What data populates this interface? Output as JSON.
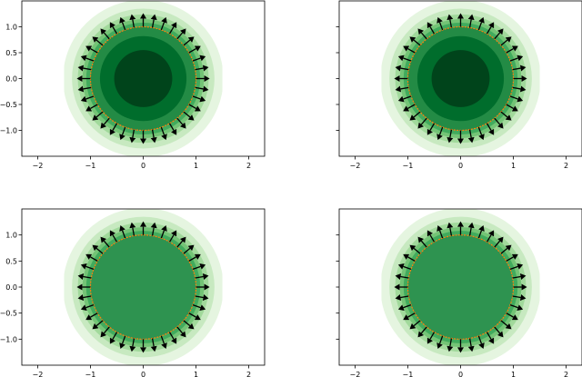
{
  "chart_data": [
    {
      "type": "contour-quiver",
      "xticks": [
        "−2",
        "−1",
        "0",
        "1",
        "2"
      ],
      "yticks": [
        "1.0",
        "0.5",
        "0.0",
        "−0.5",
        "−1.0"
      ],
      "xtick_values": [
        -2,
        -1,
        0,
        1,
        2
      ],
      "ytick_values": [
        1.0,
        0.5,
        0.0,
        -0.5,
        -1.0
      ],
      "xlim": [
        -2.3,
        2.3
      ],
      "ylim": [
        -1.5,
        1.5
      ],
      "grid": false,
      "boundary_circle_radius": 1.0,
      "arrow_count": 36,
      "inner_levels": [
        {
          "r": 0.55,
          "color": "#00441b"
        },
        {
          "r": 0.82,
          "color": "#006d2c"
        },
        {
          "r": 1.0,
          "color": "#238b45"
        }
      ],
      "outer_levels": [
        {
          "r": 1.08,
          "color": "#41ab5d"
        },
        {
          "r": 1.15,
          "color": "#74c476"
        },
        {
          "r": 1.24,
          "color": "#a1d99b"
        },
        {
          "r": 1.35,
          "color": "#c7e9c0"
        },
        {
          "r": 1.52,
          "color": "#e5f5e0"
        }
      ]
    },
    {
      "type": "contour-quiver",
      "xticks": [
        "−2",
        "−1",
        "0",
        "1",
        "2"
      ],
      "yticks": [
        "",
        "",
        "",
        "",
        ""
      ],
      "xtick_values": [
        -2,
        -1,
        0,
        1,
        2
      ],
      "ytick_values": [
        1.0,
        0.5,
        0.0,
        -0.5,
        -1.0
      ],
      "xlim": [
        -2.3,
        2.3
      ],
      "ylim": [
        -1.5,
        1.5
      ],
      "grid": false,
      "boundary_circle_radius": 1.0,
      "arrow_count": 36,
      "inner_levels": [
        {
          "r": 0.55,
          "color": "#00441b"
        },
        {
          "r": 0.82,
          "color": "#006d2c"
        },
        {
          "r": 1.0,
          "color": "#238b45"
        }
      ],
      "outer_levels": [
        {
          "r": 1.08,
          "color": "#41ab5d"
        },
        {
          "r": 1.15,
          "color": "#74c476"
        },
        {
          "r": 1.24,
          "color": "#a1d99b"
        },
        {
          "r": 1.35,
          "color": "#c7e9c0"
        },
        {
          "r": 1.52,
          "color": "#e5f5e0"
        }
      ]
    },
    {
      "type": "contour-quiver",
      "xticks": [
        "−2",
        "−1",
        "0",
        "1",
        "2"
      ],
      "yticks": [
        "1.0",
        "0.5",
        "0.0",
        "−0.5",
        "−1.0"
      ],
      "xtick_values": [
        -2,
        -1,
        0,
        1,
        2
      ],
      "ytick_values": [
        1.0,
        0.5,
        0.0,
        -0.5,
        -1.0
      ],
      "xlim": [
        -2.3,
        2.3
      ],
      "ylim": [
        -1.5,
        1.5
      ],
      "grid": false,
      "boundary_circle_radius": 1.0,
      "arrow_count": 36,
      "inner_levels": [
        {
          "r": 1.0,
          "color": "#2e9350"
        }
      ],
      "outer_levels": [
        {
          "r": 1.08,
          "color": "#41ab5d"
        },
        {
          "r": 1.15,
          "color": "#74c476"
        },
        {
          "r": 1.24,
          "color": "#a1d99b"
        },
        {
          "r": 1.35,
          "color": "#c7e9c0"
        },
        {
          "r": 1.52,
          "color": "#e5f5e0"
        }
      ]
    },
    {
      "type": "contour-quiver",
      "xticks": [
        "−2",
        "−1",
        "0",
        "1",
        "2"
      ],
      "yticks": [
        "",
        "",
        "",
        "",
        ""
      ],
      "xtick_values": [
        -2,
        -1,
        0,
        1,
        2
      ],
      "ytick_values": [
        1.0,
        0.5,
        0.0,
        -0.5,
        -1.0
      ],
      "xlim": [
        -2.3,
        2.3
      ],
      "ylim": [
        -1.5,
        1.5
      ],
      "grid": false,
      "boundary_circle_radius": 1.0,
      "arrow_count": 36,
      "inner_levels": [
        {
          "r": 1.0,
          "color": "#2e9350"
        }
      ],
      "outer_levels": [
        {
          "r": 1.08,
          "color": "#41ab5d"
        },
        {
          "r": 1.15,
          "color": "#74c476"
        },
        {
          "r": 1.24,
          "color": "#a1d99b"
        },
        {
          "r": 1.35,
          "color": "#c7e9c0"
        },
        {
          "r": 1.52,
          "color": "#e5f5e0"
        }
      ]
    }
  ],
  "colors": {
    "boundary_line": "#ff7f0e",
    "arrow": "#000000",
    "axes": "#000000"
  }
}
